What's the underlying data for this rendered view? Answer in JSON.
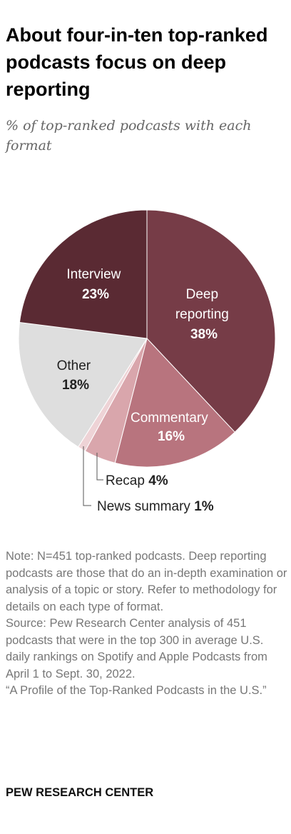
{
  "title": "About four-in-ten top-ranked podcasts focus on deep reporting",
  "subtitle": "% of top-ranked podcasts with each format",
  "chart_data": {
    "type": "pie",
    "title": "About four-in-ten top-ranked podcasts focus on deep reporting",
    "subtitle": "% of top-ranked podcasts with each format",
    "slices": [
      {
        "label": "Deep reporting",
        "value": 38,
        "color": "#763c47"
      },
      {
        "label": "Commentary",
        "value": 16,
        "color": "#b8747e"
      },
      {
        "label": "Recap",
        "value": 4,
        "color": "#d9a6ac"
      },
      {
        "label": "News summary",
        "value": 1,
        "color": "#eed3d6"
      },
      {
        "label": "Other",
        "value": 18,
        "color": "#dedede"
      },
      {
        "label": "Interview",
        "value": 23,
        "color": "#5a2a33"
      }
    ],
    "labels": {
      "deep": {
        "line1": "Deep",
        "line2": "reporting",
        "pct": "38%"
      },
      "commentary": {
        "line1": "Commentary",
        "pct": "16%"
      },
      "other": {
        "line1": "Other",
        "pct": "18%"
      },
      "interview": {
        "line1": "Interview",
        "pct": "23%"
      },
      "recap": {
        "name": "Recap ",
        "pct": "4%"
      },
      "news": {
        "name": "News summary ",
        "pct": "1%"
      }
    }
  },
  "note": "Note: N=451 top-ranked podcasts. Deep reporting podcasts are those that do an in-depth examination or analysis of a topic or story. Refer to methodology for details on each type of format.",
  "source": "Source: Pew Research Center analysis of 451 podcasts that were in the top 300 in average U.S. daily rankings on Spotify and Apple Podcasts from April 1 to Sept. 30, 2022.",
  "report": "“A Profile of the Top-Ranked Podcasts in the U.S.”",
  "footer": "PEW RESEARCH CENTER"
}
